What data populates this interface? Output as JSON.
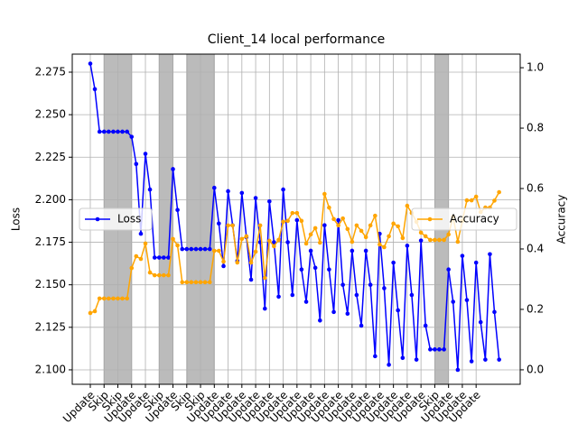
{
  "chart_data": {
    "type": "line",
    "title": "Client_14 local performance",
    "ylabel": "Loss",
    "y2label": "Accuracy",
    "x": [
      0,
      0.33,
      0.67,
      1,
      1.33,
      1.67,
      2,
      2.33,
      2.67,
      3,
      3.33,
      3.67,
      4,
      4.33,
      4.67,
      5,
      5.33,
      5.67,
      6,
      6.33,
      6.67,
      7,
      7.33,
      7.67,
      8,
      8.33,
      8.67,
      9,
      9.33,
      9.67,
      10,
      10.33,
      10.67,
      11,
      11.33,
      11.67,
      12,
      12.33,
      12.67,
      13,
      13.33,
      13.67,
      14,
      14.33,
      14.67,
      15,
      15.33,
      15.67,
      16,
      16.33,
      16.67,
      17,
      17.33,
      17.67,
      18,
      18.33,
      18.67,
      19,
      19.33,
      19.67,
      20,
      20.33,
      20.67,
      21,
      21.33,
      21.67,
      22,
      22.33,
      22.67,
      23,
      23.33,
      23.67,
      24,
      24.33,
      24.67,
      25,
      25.33,
      25.67,
      26,
      26.33,
      26.67,
      27,
      27.33,
      27.67,
      28,
      28.33,
      28.67,
      29,
      29.33,
      29.67
    ],
    "series": [
      {
        "name": "Loss",
        "color": "#0000ff",
        "axis": "y",
        "legend_loc": "center left",
        "values": [
          2.28,
          2.265,
          2.24,
          2.24,
          2.24,
          2.24,
          2.24,
          2.24,
          2.24,
          2.237,
          2.221,
          2.18,
          2.227,
          2.206,
          2.166,
          2.166,
          2.166,
          2.166,
          2.218,
          2.194,
          2.171,
          2.171,
          2.171,
          2.171,
          2.171,
          2.171,
          2.171,
          2.207,
          2.186,
          2.161,
          2.205,
          2.185,
          2.164,
          2.204,
          2.178,
          2.153,
          2.201,
          2.175,
          2.136,
          2.199,
          2.175,
          2.143,
          2.206,
          2.175,
          2.144,
          2.188,
          2.159,
          2.14,
          2.17,
          2.16,
          2.129,
          2.185,
          2.159,
          2.134,
          2.188,
          2.15,
          2.133,
          2.17,
          2.144,
          2.126,
          2.17,
          2.15,
          2.108,
          2.18,
          2.148,
          2.103,
          2.163,
          2.135,
          2.107,
          2.173,
          2.144,
          2.106,
          2.176,
          2.126,
          2.112,
          2.112,
          2.112,
          2.112,
          2.159,
          2.14,
          2.1,
          2.167,
          2.141,
          2.105,
          2.163,
          2.128,
          2.106,
          2.168,
          2.134,
          2.106
        ]
      },
      {
        "name": "Accuracy",
        "color": "#ffa500",
        "axis": "y2",
        "legend_loc": "center right",
        "values": [
          0.188,
          0.194,
          0.236,
          0.236,
          0.236,
          0.236,
          0.236,
          0.236,
          0.236,
          0.337,
          0.376,
          0.367,
          0.418,
          0.322,
          0.313,
          0.313,
          0.313,
          0.313,
          0.433,
          0.412,
          0.29,
          0.29,
          0.29,
          0.29,
          0.29,
          0.29,
          0.29,
          0.394,
          0.394,
          0.358,
          0.478,
          0.478,
          0.355,
          0.433,
          0.442,
          0.355,
          0.391,
          0.478,
          0.304,
          0.427,
          0.409,
          0.43,
          0.49,
          0.493,
          0.519,
          0.519,
          0.493,
          0.418,
          0.448,
          0.469,
          0.421,
          0.582,
          0.537,
          0.499,
          0.478,
          0.501,
          0.466,
          0.424,
          0.478,
          0.46,
          0.439,
          0.478,
          0.51,
          0.415,
          0.406,
          0.442,
          0.484,
          0.475,
          0.436,
          0.543,
          0.519,
          0.49,
          0.454,
          0.442,
          0.43,
          0.43,
          0.43,
          0.43,
          0.448,
          0.507,
          0.424,
          0.493,
          0.561,
          0.561,
          0.573,
          0.522,
          0.537,
          0.537,
          0.56,
          0.588
        ]
      }
    ],
    "xlim": [
      -1.31,
      31.2
    ],
    "xticks": [
      {
        "value": 0,
        "label": "Update"
      },
      {
        "value": 1,
        "label": "Skip"
      },
      {
        "value": 2,
        "label": "Skip"
      },
      {
        "value": 3,
        "label": "Update"
      },
      {
        "value": 4,
        "label": "Update"
      },
      {
        "value": 5,
        "label": "Skip"
      },
      {
        "value": 6,
        "label": "Update"
      },
      {
        "value": 7,
        "label": "Skip"
      },
      {
        "value": 8,
        "label": "Skip"
      },
      {
        "value": 9,
        "label": "Update"
      },
      {
        "value": 10,
        "label": "Update"
      },
      {
        "value": 11,
        "label": "Update"
      },
      {
        "value": 12,
        "label": "Update"
      },
      {
        "value": 13,
        "label": "Update"
      },
      {
        "value": 14,
        "label": "Update"
      },
      {
        "value": 15,
        "label": "Update"
      },
      {
        "value": 16,
        "label": "Update"
      },
      {
        "value": 17,
        "label": "Update"
      },
      {
        "value": 18,
        "label": "Update"
      },
      {
        "value": 19,
        "label": "Update"
      },
      {
        "value": 20,
        "label": "Update"
      },
      {
        "value": 21,
        "label": "Update"
      },
      {
        "value": 22,
        "label": "Update"
      },
      {
        "value": 23,
        "label": "Update"
      },
      {
        "value": 24,
        "label": "Update"
      },
      {
        "value": 25,
        "label": "Skip"
      },
      {
        "value": 26,
        "label": "Update"
      },
      {
        "value": 27,
        "label": "Update"
      },
      {
        "value": 28,
        "label": "Update"
      }
    ],
    "ylim": [
      2.0915,
      2.2856
    ],
    "yticks": [
      {
        "value": 2.1,
        "label": "2.100"
      },
      2.125,
      {
        "value": 2.15,
        "label": "2.150"
      },
      2.175,
      {
        "value": 2.2,
        "label": "2.200"
      },
      2.225,
      {
        "value": 2.25,
        "label": "2.250"
      },
      2.275
    ],
    "y2lim": [
      -0.048,
      1.045
    ],
    "y2ticks": [
      {
        "value": 0,
        "label": "0.0"
      },
      0.2,
      0.4,
      0.6,
      0.8,
      {
        "value": 1,
        "label": "1.0"
      }
    ],
    "grid": true,
    "highlight_spans": [
      [
        1,
        3
      ],
      [
        5,
        6
      ],
      [
        7,
        9
      ],
      [
        25,
        26
      ]
    ],
    "highlight_color": "#bbbbbb"
  }
}
